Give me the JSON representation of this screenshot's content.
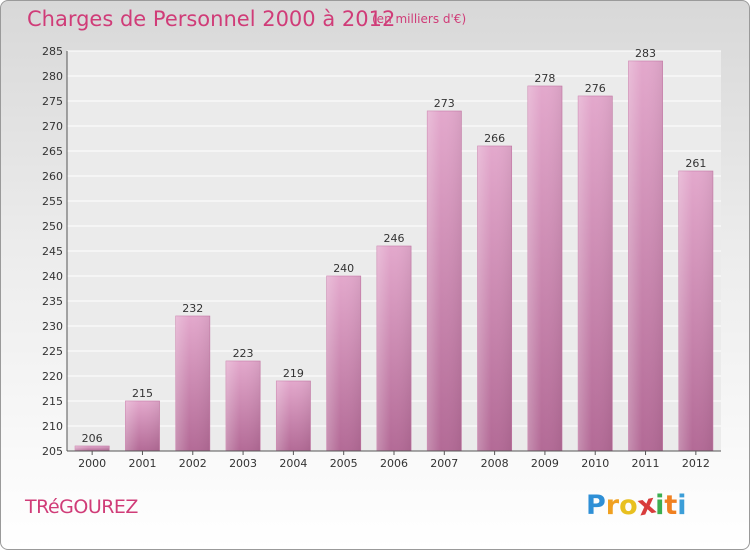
{
  "header": {
    "title": "Charges de Personnel 2000 à 2012",
    "subtitle": "(en milliers d'€)"
  },
  "footer": {
    "commune": "TRéGOUREZ",
    "logo_letters": [
      "P",
      "r",
      "o",
      "x",
      "i",
      "t",
      "i"
    ],
    "logo_colors": [
      "#2e8fd6",
      "#f0a020",
      "#e8c020",
      "#d83c3c",
      "#3cae50",
      "#f08020",
      "#3c9ed8"
    ]
  },
  "chart_data": {
    "type": "bar",
    "categories": [
      "2000",
      "2001",
      "2002",
      "2003",
      "2004",
      "2005",
      "2006",
      "2007",
      "2008",
      "2009",
      "2010",
      "2011",
      "2012"
    ],
    "values": [
      206,
      215,
      232,
      223,
      219,
      240,
      246,
      273,
      266,
      278,
      276,
      283,
      261
    ],
    "ylim": [
      205,
      285
    ],
    "yticks": [
      205,
      210,
      215,
      220,
      225,
      230,
      235,
      240,
      245,
      250,
      255,
      260,
      265,
      270,
      275,
      280,
      285
    ],
    "grid": true,
    "bar_color": "#d98ab8"
  }
}
